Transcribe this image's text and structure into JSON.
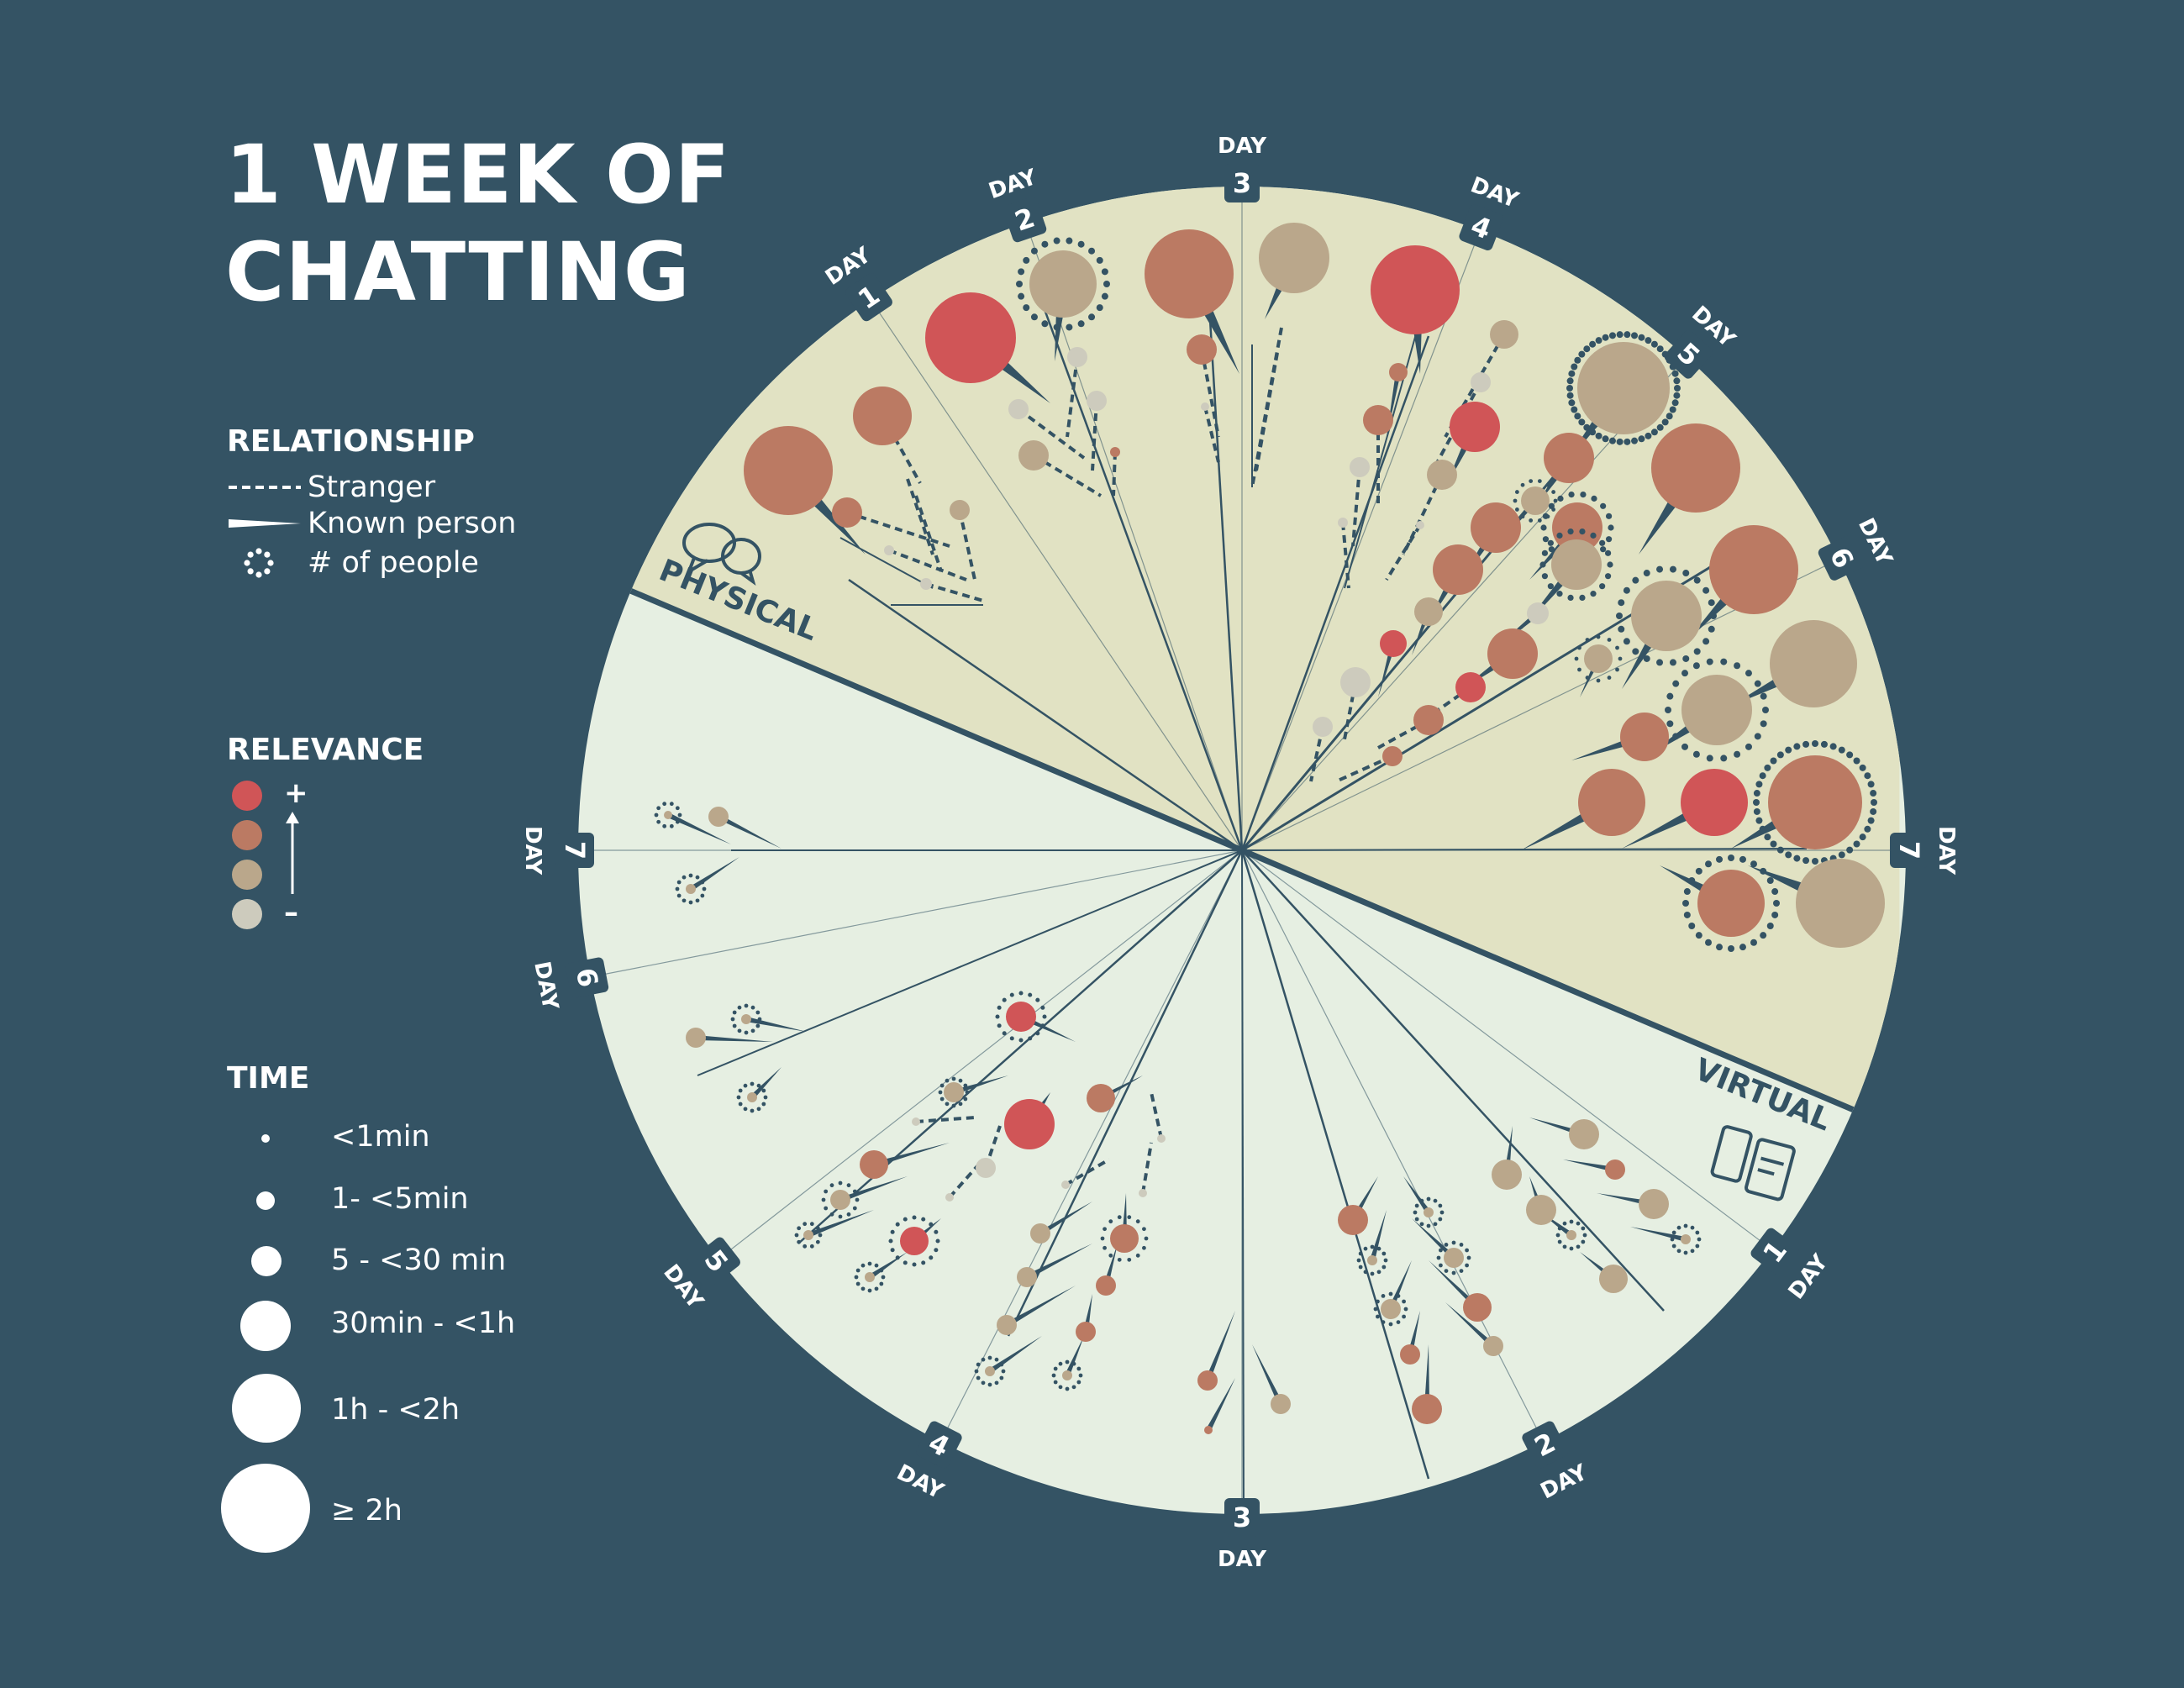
{
  "title": {
    "line1": "1 WEEK OF",
    "line2": "CHATTING"
  },
  "legend": {
    "relationship": {
      "heading": "RELATIONSHIP",
      "stranger": "Stranger",
      "known": "Known person",
      "people": "# of people"
    },
    "relevance": {
      "heading": "RELEVANCE",
      "plus": "+",
      "minus": "–",
      "colors": [
        "#d05557",
        "#bb7a63",
        "#baa78b",
        "#cdcbbd"
      ]
    },
    "time": {
      "heading": "TIME",
      "items": [
        "<1min",
        "1- <5min",
        "5 - <30 min",
        "30min - <1h",
        "1h - <2h",
        "≥ 2h"
      ]
    }
  },
  "wheel": {
    "physical_label": "PHYSICAL",
    "virtual_label": "VIRTUAL",
    "day_word": "DAY",
    "physical_days": [
      "1",
      "2",
      "3",
      "4",
      "5",
      "6",
      "7"
    ],
    "virtual_days": [
      "1",
      "2",
      "3",
      "4",
      "5",
      "6",
      "7"
    ]
  },
  "colors": {
    "background": "#345364",
    "physical_fill": "#e1e2c3",
    "virtual_fill": "#e6efe2",
    "ink": "#345364"
  }
}
